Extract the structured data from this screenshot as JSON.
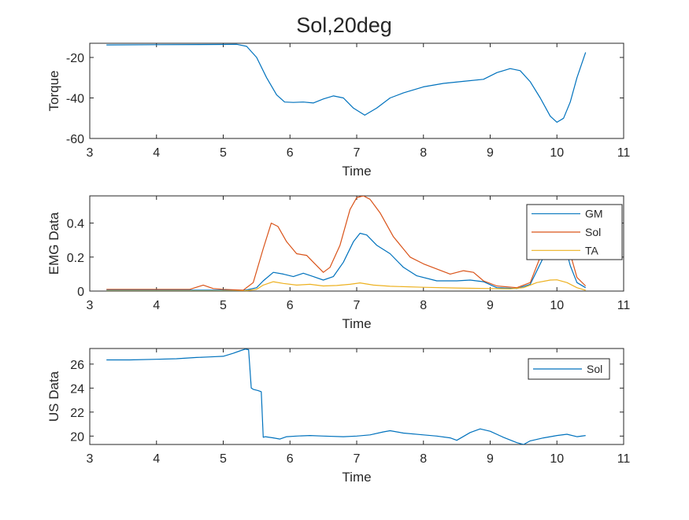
{
  "figure_title": "Sol,20deg",
  "chart_data": [
    {
      "type": "line",
      "title": "",
      "xlabel": "Time",
      "ylabel": "Torque",
      "xlim": [
        3,
        11
      ],
      "ylim": [
        -60,
        -13
      ],
      "xticks": [
        3,
        4,
        5,
        6,
        7,
        8,
        9,
        10,
        11
      ],
      "yticks": [
        -60,
        -40,
        -20
      ],
      "grid": false,
      "legend": null,
      "series": [
        {
          "name": "",
          "color": "#0072BD",
          "x": [
            3.25,
            4.0,
            5.0,
            5.2,
            5.35,
            5.5,
            5.65,
            5.8,
            5.92,
            6.05,
            6.2,
            6.35,
            6.5,
            6.65,
            6.8,
            6.95,
            7.12,
            7.3,
            7.5,
            7.7,
            8.0,
            8.3,
            8.6,
            8.9,
            9.1,
            9.3,
            9.45,
            9.6,
            9.75,
            9.9,
            10.0,
            10.1,
            10.2,
            10.3,
            10.43
          ],
          "y": [
            -13.8,
            -13.7,
            -13.6,
            -13.5,
            -14.5,
            -20,
            -30,
            -38.5,
            -42,
            -42.2,
            -42,
            -42.5,
            -40.5,
            -39,
            -40,
            -45,
            -48.5,
            -45,
            -40,
            -37.5,
            -34.5,
            -32.8,
            -31.8,
            -30.8,
            -27.5,
            -25.5,
            -26.5,
            -32,
            -40,
            -49,
            -52,
            -50,
            -42,
            -30,
            -17.5
          ]
        }
      ]
    },
    {
      "type": "line",
      "title": "",
      "xlabel": "Time",
      "ylabel": "EMG Data",
      "xlim": [
        3,
        11
      ],
      "ylim": [
        0,
        0.56
      ],
      "xticks": [
        3,
        4,
        5,
        6,
        7,
        8,
        9,
        10,
        11
      ],
      "yticks": [
        0,
        0.2,
        0.4
      ],
      "grid": false,
      "legend": "top-right",
      "series": [
        {
          "name": "GM",
          "color": "#0072BD",
          "x": [
            3.25,
            4.0,
            4.5,
            5.0,
            5.3,
            5.5,
            5.6,
            5.75,
            5.9,
            6.05,
            6.2,
            6.35,
            6.5,
            6.65,
            6.8,
            6.95,
            7.05,
            7.15,
            7.3,
            7.5,
            7.7,
            7.9,
            8.2,
            8.5,
            8.7,
            8.9,
            9.1,
            9.4,
            9.6,
            9.8,
            9.95,
            10.1,
            10.2,
            10.3,
            10.43
          ],
          "y": [
            0.005,
            0.005,
            0.005,
            0.005,
            0.003,
            0.02,
            0.06,
            0.11,
            0.1,
            0.085,
            0.105,
            0.085,
            0.065,
            0.085,
            0.17,
            0.29,
            0.34,
            0.33,
            0.27,
            0.22,
            0.14,
            0.09,
            0.06,
            0.06,
            0.065,
            0.055,
            0.02,
            0.015,
            0.04,
            0.2,
            0.34,
            0.3,
            0.15,
            0.05,
            0.02
          ]
        },
        {
          "name": "Sol",
          "color": "#D95319",
          "x": [
            3.25,
            4.0,
            4.5,
            4.7,
            4.85,
            5.0,
            5.3,
            5.45,
            5.6,
            5.72,
            5.82,
            5.95,
            6.1,
            6.25,
            6.35,
            6.5,
            6.6,
            6.75,
            6.9,
            7.0,
            7.1,
            7.2,
            7.35,
            7.55,
            7.8,
            8.0,
            8.2,
            8.4,
            8.6,
            8.75,
            8.9,
            9.1,
            9.4,
            9.6,
            9.8,
            9.95,
            10.1,
            10.2,
            10.3,
            10.43
          ],
          "y": [
            0.01,
            0.01,
            0.01,
            0.035,
            0.015,
            0.01,
            0.005,
            0.05,
            0.25,
            0.4,
            0.38,
            0.29,
            0.22,
            0.21,
            0.17,
            0.11,
            0.14,
            0.27,
            0.48,
            0.55,
            0.56,
            0.54,
            0.46,
            0.32,
            0.2,
            0.16,
            0.13,
            0.1,
            0.12,
            0.11,
            0.06,
            0.03,
            0.02,
            0.05,
            0.25,
            0.45,
            0.42,
            0.22,
            0.08,
            0.03
          ]
        },
        {
          "name": "TA",
          "color": "#EDB120",
          "x": [
            3.25,
            4.0,
            5.0,
            5.3,
            5.5,
            5.6,
            5.75,
            5.9,
            6.1,
            6.3,
            6.5,
            6.7,
            6.9,
            7.05,
            7.25,
            7.5,
            8.0,
            8.5,
            9.0,
            9.3,
            9.5,
            9.7,
            9.9,
            10.0,
            10.15,
            10.3,
            10.43
          ],
          "y": [
            0.0,
            0.0,
            0.0,
            0.0,
            0.01,
            0.035,
            0.055,
            0.045,
            0.035,
            0.04,
            0.03,
            0.033,
            0.04,
            0.048,
            0.035,
            0.028,
            0.022,
            0.018,
            0.015,
            0.013,
            0.02,
            0.05,
            0.065,
            0.066,
            0.05,
            0.02,
            0.005
          ]
        }
      ]
    },
    {
      "type": "line",
      "title": "",
      "xlabel": "Time",
      "ylabel": "US Data",
      "xlim": [
        3,
        11
      ],
      "ylim": [
        19.3,
        27.3
      ],
      "xticks": [
        3,
        4,
        5,
        6,
        7,
        8,
        9,
        10,
        11
      ],
      "yticks": [
        20,
        22,
        24,
        26
      ],
      "grid": false,
      "legend": "top-right",
      "series": [
        {
          "name": "Sol",
          "color": "#0072BD",
          "x": [
            3.25,
            3.6,
            4.0,
            4.3,
            4.6,
            4.8,
            5.0,
            5.15,
            5.25,
            5.33,
            5.38,
            5.42,
            5.45,
            5.52,
            5.57,
            5.6,
            5.63,
            5.75,
            5.85,
            5.95,
            6.1,
            6.3,
            6.5,
            6.8,
            7.0,
            7.2,
            7.4,
            7.5,
            7.7,
            8.0,
            8.2,
            8.4,
            8.5,
            8.7,
            8.85,
            9.0,
            9.2,
            9.4,
            9.5,
            9.6,
            9.8,
            10.0,
            10.15,
            10.3,
            10.43
          ],
          "y": [
            26.35,
            26.35,
            26.4,
            26.45,
            26.55,
            26.6,
            26.65,
            26.9,
            27.1,
            27.25,
            27.2,
            24.0,
            23.9,
            23.8,
            23.7,
            19.9,
            19.95,
            19.85,
            19.75,
            19.95,
            20.0,
            20.05,
            20.0,
            19.95,
            20.0,
            20.1,
            20.35,
            20.45,
            20.25,
            20.1,
            20.0,
            19.85,
            19.65,
            20.3,
            20.6,
            20.4,
            19.9,
            19.45,
            19.3,
            19.6,
            19.85,
            20.05,
            20.15,
            19.95,
            20.05
          ]
        }
      ]
    }
  ]
}
